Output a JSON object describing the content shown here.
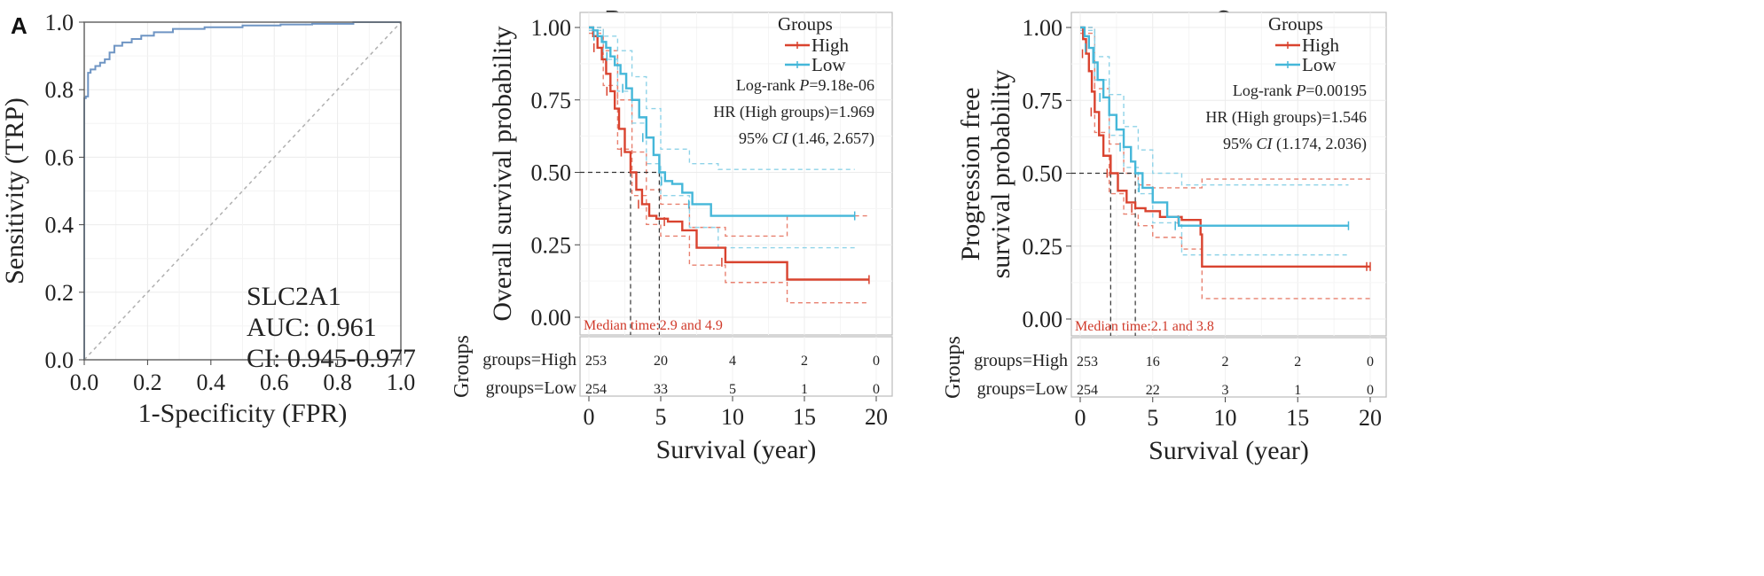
{
  "chart_data": [
    {
      "panel": "A",
      "type": "line",
      "xlabel": "1-Specificity (FPR)",
      "ylabel": "Sensitivity (TRP)",
      "xlim": [
        0,
        1
      ],
      "ylim": [
        0,
        1
      ],
      "xticks": [
        "0.0",
        "0.2",
        "0.4",
        "0.6",
        "0.8",
        "1.0"
      ],
      "yticks": [
        "0.0",
        "0.2",
        "0.4",
        "0.6",
        "0.8",
        "1.0"
      ],
      "grid": true,
      "annotation": [
        "SLC2A1",
        "AUC: 0.961",
        "CI: 0.945-0.977"
      ],
      "series": [
        {
          "color": "#6f95c4",
          "x": [
            0,
            0,
            0.005,
            0.005,
            0.012,
            0.012,
            0.02,
            0.02,
            0.035,
            0.035,
            0.05,
            0.05,
            0.065,
            0.065,
            0.08,
            0.08,
            0.095,
            0.095,
            0.12,
            0.12,
            0.15,
            0.15,
            0.18,
            0.18,
            0.22,
            0.22,
            0.28,
            0.28,
            0.38,
            0.38,
            0.5,
            0.5,
            0.62,
            0.62,
            0.72,
            0.72,
            0.85,
            0.85,
            1.0
          ],
          "y": [
            0,
            0.775,
            0.775,
            0.78,
            0.78,
            0.85,
            0.85,
            0.86,
            0.86,
            0.87,
            0.87,
            0.88,
            0.88,
            0.89,
            0.89,
            0.91,
            0.91,
            0.93,
            0.93,
            0.94,
            0.94,
            0.95,
            0.95,
            0.96,
            0.96,
            0.97,
            0.97,
            0.98,
            0.98,
            0.985,
            0.985,
            0.99,
            0.99,
            0.993,
            0.993,
            0.995,
            0.995,
            1.0,
            1.0
          ]
        },
        {
          "color": "#b0b0b0",
          "dashed": true,
          "x": [
            0,
            1
          ],
          "y": [
            0,
            1
          ]
        }
      ]
    },
    {
      "panel": "B",
      "type": "line",
      "xlabel": "Survival (year)",
      "ylabel": "Overall survival probability",
      "xlim": [
        0,
        20
      ],
      "ylim": [
        0,
        1
      ],
      "xticks": [
        "0",
        "5",
        "10",
        "15",
        "20"
      ],
      "yticks": [
        "0.00",
        "0.25",
        "0.50",
        "0.75",
        "1.00"
      ],
      "grid": true,
      "legend": {
        "title": "Groups",
        "items": [
          "High",
          "Low"
        ],
        "position": "top-right"
      },
      "stats": [
        {
          "pre": "Log-rank ",
          "ital": "P",
          "post": "=9.18e-06"
        },
        {
          "pre": "HR (High groups)=1.969",
          "ital": "",
          "post": ""
        },
        {
          "pre": "95% ",
          "ital": "CI",
          "post": " (1.46, 2.657)"
        }
      ],
      "median_text": "Median time:2.9 and 4.9",
      "medians": [
        2.9,
        4.9
      ],
      "series": [
        {
          "name": "High",
          "color": "#d9432f",
          "x": [
            0,
            0.3,
            0.6,
            0.9,
            1.2,
            1.5,
            1.8,
            2.1,
            2.5,
            2.9,
            3.3,
            3.7,
            4.2,
            4.7,
            5.5,
            6.5,
            7.5,
            9.5,
            13.8,
            19.5
          ],
          "y": [
            1.0,
            0.97,
            0.93,
            0.89,
            0.84,
            0.78,
            0.72,
            0.65,
            0.57,
            0.5,
            0.44,
            0.39,
            0.35,
            0.34,
            0.33,
            0.3,
            0.24,
            0.19,
            0.13,
            0.13
          ]
        },
        {
          "name": "Low",
          "color": "#45b7d9",
          "x": [
            0,
            0.3,
            0.6,
            0.9,
            1.2,
            1.5,
            1.8,
            2.2,
            2.6,
            3.0,
            3.5,
            4.0,
            4.5,
            4.9,
            5.3,
            5.8,
            6.5,
            7.2,
            8.5,
            18.5
          ],
          "y": [
            1.0,
            0.99,
            0.97,
            0.95,
            0.93,
            0.9,
            0.87,
            0.84,
            0.79,
            0.75,
            0.69,
            0.62,
            0.56,
            0.5,
            0.47,
            0.46,
            0.43,
            0.39,
            0.35,
            0.35
          ]
        },
        {
          "name": "High CI",
          "color": "#e8806f",
          "dashed": true,
          "role": "ci",
          "x": [
            0,
            1,
            2,
            3,
            4,
            5,
            7,
            9.5,
            13.8,
            19.5
          ],
          "y": [
            1.0,
            0.92,
            0.75,
            0.57,
            0.44,
            0.39,
            0.31,
            0.28,
            0.35,
            0.35
          ]
        },
        {
          "name": "High CI lower",
          "color": "#e8806f",
          "dashed": true,
          "role": "ci",
          "x": [
            0,
            1,
            2,
            3,
            4,
            5,
            7,
            9.5,
            13.8,
            19.5
          ],
          "y": [
            0.98,
            0.8,
            0.58,
            0.42,
            0.32,
            0.28,
            0.18,
            0.12,
            0.05,
            0.05
          ]
        },
        {
          "name": "Low CI",
          "color": "#8fd3e8",
          "dashed": true,
          "role": "ci",
          "x": [
            0,
            1,
            2,
            3,
            4,
            5,
            7,
            9,
            18.5
          ],
          "y": [
            1.0,
            0.97,
            0.92,
            0.83,
            0.72,
            0.58,
            0.53,
            0.51,
            0.51
          ]
        },
        {
          "name": "Low CI lower",
          "color": "#8fd3e8",
          "dashed": true,
          "role": "ci",
          "x": [
            0,
            1,
            2,
            3,
            4,
            5,
            7,
            9,
            18.5
          ],
          "y": [
            0.99,
            0.89,
            0.78,
            0.67,
            0.53,
            0.42,
            0.31,
            0.24,
            0.24
          ]
        }
      ],
      "risk_table": {
        "title": "Groups",
        "rows": [
          {
            "label": "groups=High",
            "values": [
              "253",
              "20",
              "4",
              "2",
              "0"
            ]
          },
          {
            "label": "groups=Low",
            "values": [
              "254",
              "33",
              "5",
              "1",
              "0"
            ]
          }
        ]
      }
    },
    {
      "panel": "C",
      "type": "line",
      "xlabel": "Survival (year)",
      "ylabel": [
        "Progression free",
        "survival probability"
      ],
      "xlim": [
        0,
        20
      ],
      "ylim": [
        0,
        1
      ],
      "xticks": [
        "0",
        "5",
        "10",
        "15",
        "20"
      ],
      "yticks": [
        "0.00",
        "0.25",
        "0.50",
        "0.75",
        "1.00"
      ],
      "grid": true,
      "legend": {
        "title": "Groups",
        "items": [
          "High",
          "Low"
        ],
        "position": "top-right"
      },
      "stats": [
        {
          "pre": "Log-rank ",
          "ital": "P",
          "post": "=0.00195"
        },
        {
          "pre": "HR (High groups)=1.546",
          "ital": "",
          "post": ""
        },
        {
          "pre": "95% ",
          "ital": "CI",
          "post": " (1.174, 2.036)"
        }
      ],
      "median_text": "Median time:2.1 and 3.8",
      "medians": [
        2.1,
        3.8
      ],
      "series": [
        {
          "name": "High",
          "color": "#d9432f",
          "x": [
            0,
            0.2,
            0.4,
            0.6,
            0.8,
            1.0,
            1.3,
            1.6,
            2.1,
            2.6,
            3.2,
            3.8,
            4.5,
            5.5,
            7.0,
            8.3,
            8.4,
            20.0
          ],
          "y": [
            1.0,
            0.96,
            0.91,
            0.85,
            0.78,
            0.71,
            0.63,
            0.56,
            0.5,
            0.44,
            0.4,
            0.38,
            0.37,
            0.35,
            0.34,
            0.29,
            0.18,
            0.18
          ]
        },
        {
          "name": "Low",
          "color": "#45b7d9",
          "x": [
            0,
            0.3,
            0.6,
            0.9,
            1.2,
            1.6,
            2.0,
            2.5,
            3.0,
            3.5,
            3.8,
            4.3,
            5.0,
            6.0,
            6.8,
            18.5
          ],
          "y": [
            1.0,
            0.97,
            0.93,
            0.88,
            0.82,
            0.76,
            0.7,
            0.65,
            0.59,
            0.54,
            0.5,
            0.45,
            0.4,
            0.35,
            0.32,
            0.32
          ]
        },
        {
          "name": "High CI",
          "color": "#e8806f",
          "dashed": true,
          "role": "ci",
          "x": [
            0,
            1,
            2,
            3,
            4,
            5,
            7,
            8.4,
            20
          ],
          "y": [
            1.0,
            0.79,
            0.6,
            0.5,
            0.46,
            0.45,
            0.45,
            0.48,
            0.48
          ]
        },
        {
          "name": "High CI lower",
          "color": "#e8806f",
          "dashed": true,
          "role": "ci",
          "x": [
            0,
            1,
            2,
            3,
            4,
            5,
            7,
            8.4,
            20
          ],
          "y": [
            0.98,
            0.64,
            0.43,
            0.36,
            0.32,
            0.28,
            0.24,
            0.07,
            0.07
          ]
        },
        {
          "name": "Low CI",
          "color": "#8fd3e8",
          "dashed": true,
          "role": "ci",
          "x": [
            0,
            1,
            2,
            3,
            4,
            5,
            7,
            18.5
          ],
          "y": [
            1.0,
            0.9,
            0.77,
            0.66,
            0.58,
            0.5,
            0.46,
            0.46
          ]
        },
        {
          "name": "Low CI lower",
          "color": "#8fd3e8",
          "dashed": true,
          "role": "ci",
          "x": [
            0,
            1,
            2,
            3,
            4,
            5,
            7,
            18.5
          ],
          "y": [
            0.99,
            0.82,
            0.63,
            0.52,
            0.43,
            0.33,
            0.22,
            0.22
          ]
        }
      ],
      "risk_table": {
        "title": "Groups",
        "rows": [
          {
            "label": "groups=High",
            "values": [
              "253",
              "16",
              "2",
              "2",
              "0"
            ]
          },
          {
            "label": "groups=Low",
            "values": [
              "254",
              "22",
              "3",
              "1",
              "0"
            ]
          }
        ]
      }
    }
  ],
  "panels": {
    "A": "A",
    "B": "B",
    "C": "C"
  }
}
